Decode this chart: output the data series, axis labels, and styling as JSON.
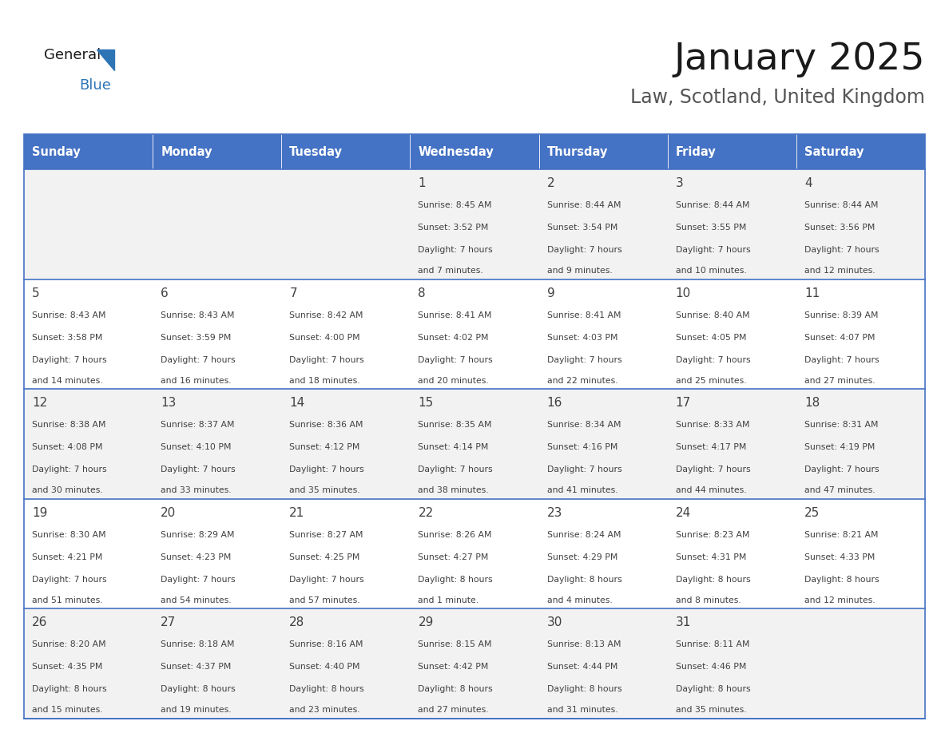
{
  "title": "January 2025",
  "subtitle": "Law, Scotland, United Kingdom",
  "days_of_week": [
    "Sunday",
    "Monday",
    "Tuesday",
    "Wednesday",
    "Thursday",
    "Friday",
    "Saturday"
  ],
  "header_bg": "#4472C4",
  "header_text_color": "#FFFFFF",
  "cell_bg_odd": "#F2F2F2",
  "cell_bg_even": "#FFFFFF",
  "border_color": "#4472C4",
  "text_color": "#404040",
  "title_color": "#1a1a1a",
  "subtitle_color": "#555555",
  "logo_general_color": "#1a1a1a",
  "logo_blue_color": "#2E75B6",
  "weeks": [
    [
      {
        "day": "",
        "sunrise": "",
        "sunset": "",
        "daylight": ""
      },
      {
        "day": "",
        "sunrise": "",
        "sunset": "",
        "daylight": ""
      },
      {
        "day": "",
        "sunrise": "",
        "sunset": "",
        "daylight": ""
      },
      {
        "day": "1",
        "sunrise": "Sunrise: 8:45 AM",
        "sunset": "Sunset: 3:52 PM",
        "daylight": "Daylight: 7 hours\nand 7 minutes."
      },
      {
        "day": "2",
        "sunrise": "Sunrise: 8:44 AM",
        "sunset": "Sunset: 3:54 PM",
        "daylight": "Daylight: 7 hours\nand 9 minutes."
      },
      {
        "day": "3",
        "sunrise": "Sunrise: 8:44 AM",
        "sunset": "Sunset: 3:55 PM",
        "daylight": "Daylight: 7 hours\nand 10 minutes."
      },
      {
        "day": "4",
        "sunrise": "Sunrise: 8:44 AM",
        "sunset": "Sunset: 3:56 PM",
        "daylight": "Daylight: 7 hours\nand 12 minutes."
      }
    ],
    [
      {
        "day": "5",
        "sunrise": "Sunrise: 8:43 AM",
        "sunset": "Sunset: 3:58 PM",
        "daylight": "Daylight: 7 hours\nand 14 minutes."
      },
      {
        "day": "6",
        "sunrise": "Sunrise: 8:43 AM",
        "sunset": "Sunset: 3:59 PM",
        "daylight": "Daylight: 7 hours\nand 16 minutes."
      },
      {
        "day": "7",
        "sunrise": "Sunrise: 8:42 AM",
        "sunset": "Sunset: 4:00 PM",
        "daylight": "Daylight: 7 hours\nand 18 minutes."
      },
      {
        "day": "8",
        "sunrise": "Sunrise: 8:41 AM",
        "sunset": "Sunset: 4:02 PM",
        "daylight": "Daylight: 7 hours\nand 20 minutes."
      },
      {
        "day": "9",
        "sunrise": "Sunrise: 8:41 AM",
        "sunset": "Sunset: 4:03 PM",
        "daylight": "Daylight: 7 hours\nand 22 minutes."
      },
      {
        "day": "10",
        "sunrise": "Sunrise: 8:40 AM",
        "sunset": "Sunset: 4:05 PM",
        "daylight": "Daylight: 7 hours\nand 25 minutes."
      },
      {
        "day": "11",
        "sunrise": "Sunrise: 8:39 AM",
        "sunset": "Sunset: 4:07 PM",
        "daylight": "Daylight: 7 hours\nand 27 minutes."
      }
    ],
    [
      {
        "day": "12",
        "sunrise": "Sunrise: 8:38 AM",
        "sunset": "Sunset: 4:08 PM",
        "daylight": "Daylight: 7 hours\nand 30 minutes."
      },
      {
        "day": "13",
        "sunrise": "Sunrise: 8:37 AM",
        "sunset": "Sunset: 4:10 PM",
        "daylight": "Daylight: 7 hours\nand 33 minutes."
      },
      {
        "day": "14",
        "sunrise": "Sunrise: 8:36 AM",
        "sunset": "Sunset: 4:12 PM",
        "daylight": "Daylight: 7 hours\nand 35 minutes."
      },
      {
        "day": "15",
        "sunrise": "Sunrise: 8:35 AM",
        "sunset": "Sunset: 4:14 PM",
        "daylight": "Daylight: 7 hours\nand 38 minutes."
      },
      {
        "day": "16",
        "sunrise": "Sunrise: 8:34 AM",
        "sunset": "Sunset: 4:16 PM",
        "daylight": "Daylight: 7 hours\nand 41 minutes."
      },
      {
        "day": "17",
        "sunrise": "Sunrise: 8:33 AM",
        "sunset": "Sunset: 4:17 PM",
        "daylight": "Daylight: 7 hours\nand 44 minutes."
      },
      {
        "day": "18",
        "sunrise": "Sunrise: 8:31 AM",
        "sunset": "Sunset: 4:19 PM",
        "daylight": "Daylight: 7 hours\nand 47 minutes."
      }
    ],
    [
      {
        "day": "19",
        "sunrise": "Sunrise: 8:30 AM",
        "sunset": "Sunset: 4:21 PM",
        "daylight": "Daylight: 7 hours\nand 51 minutes."
      },
      {
        "day": "20",
        "sunrise": "Sunrise: 8:29 AM",
        "sunset": "Sunset: 4:23 PM",
        "daylight": "Daylight: 7 hours\nand 54 minutes."
      },
      {
        "day": "21",
        "sunrise": "Sunrise: 8:27 AM",
        "sunset": "Sunset: 4:25 PM",
        "daylight": "Daylight: 7 hours\nand 57 minutes."
      },
      {
        "day": "22",
        "sunrise": "Sunrise: 8:26 AM",
        "sunset": "Sunset: 4:27 PM",
        "daylight": "Daylight: 8 hours\nand 1 minute."
      },
      {
        "day": "23",
        "sunrise": "Sunrise: 8:24 AM",
        "sunset": "Sunset: 4:29 PM",
        "daylight": "Daylight: 8 hours\nand 4 minutes."
      },
      {
        "day": "24",
        "sunrise": "Sunrise: 8:23 AM",
        "sunset": "Sunset: 4:31 PM",
        "daylight": "Daylight: 8 hours\nand 8 minutes."
      },
      {
        "day": "25",
        "sunrise": "Sunrise: 8:21 AM",
        "sunset": "Sunset: 4:33 PM",
        "daylight": "Daylight: 8 hours\nand 12 minutes."
      }
    ],
    [
      {
        "day": "26",
        "sunrise": "Sunrise: 8:20 AM",
        "sunset": "Sunset: 4:35 PM",
        "daylight": "Daylight: 8 hours\nand 15 minutes."
      },
      {
        "day": "27",
        "sunrise": "Sunrise: 8:18 AM",
        "sunset": "Sunset: 4:37 PM",
        "daylight": "Daylight: 8 hours\nand 19 minutes."
      },
      {
        "day": "28",
        "sunrise": "Sunrise: 8:16 AM",
        "sunset": "Sunset: 4:40 PM",
        "daylight": "Daylight: 8 hours\nand 23 minutes."
      },
      {
        "day": "29",
        "sunrise": "Sunrise: 8:15 AM",
        "sunset": "Sunset: 4:42 PM",
        "daylight": "Daylight: 8 hours\nand 27 minutes."
      },
      {
        "day": "30",
        "sunrise": "Sunrise: 8:13 AM",
        "sunset": "Sunset: 4:44 PM",
        "daylight": "Daylight: 8 hours\nand 31 minutes."
      },
      {
        "day": "31",
        "sunrise": "Sunrise: 8:11 AM",
        "sunset": "Sunset: 4:46 PM",
        "daylight": "Daylight: 8 hours\nand 35 minutes."
      },
      {
        "day": "",
        "sunrise": "",
        "sunset": "",
        "daylight": ""
      }
    ]
  ]
}
